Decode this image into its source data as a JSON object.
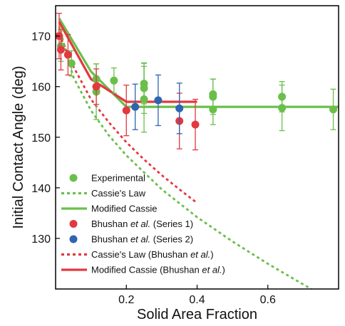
{
  "chart_data": {
    "type": "scatter",
    "xlabel": "Solid Area Fraction",
    "ylabel": "Initial Contact Angle (deg)",
    "xlim": [
      0,
      0.8
    ],
    "ylim": [
      120,
      176
    ],
    "x_ticks": [
      0.2,
      0.4,
      0.6
    ],
    "x_tick_labels": [
      "0.2",
      "0.4",
      "0.6"
    ],
    "y_ticks": [
      130,
      140,
      150,
      160,
      170
    ],
    "y_tick_labels": [
      "130",
      "140",
      "150",
      "160",
      "170"
    ],
    "grid": false,
    "legend_position": "bottom-left",
    "colors": {
      "green": "#6abf4b",
      "red": "#e2383f",
      "blue": "#2f64b0"
    },
    "series": [
      {
        "name": "Experimental",
        "kind": "points",
        "color": "#6abf4b",
        "points": [
          {
            "x": 0.015,
            "y": 168.0,
            "err": 3.0
          },
          {
            "x": 0.045,
            "y": 164.6,
            "err": 2.5
          },
          {
            "x": 0.115,
            "y": 159.0,
            "err": 5.5
          },
          {
            "x": 0.115,
            "y": 161.5,
            "err": 3.0
          },
          {
            "x": 0.165,
            "y": 161.2,
            "err": 2.5
          },
          {
            "x": 0.25,
            "y": 157.5,
            "err": 6.5
          },
          {
            "x": 0.25,
            "y": 159.7,
            "err": 5.0
          },
          {
            "x": 0.25,
            "y": 160.6,
            "err": 4.0
          },
          {
            "x": 0.445,
            "y": 155.5,
            "err": 3.0
          },
          {
            "x": 0.445,
            "y": 158.0,
            "err": 3.5
          },
          {
            "x": 0.445,
            "y": 158.5,
            "err": 3.0
          },
          {
            "x": 0.64,
            "y": 155.8,
            "err": 4.5
          },
          {
            "x": 0.64,
            "y": 158.0,
            "err": 3.0
          },
          {
            "x": 0.785,
            "y": 155.5,
            "err": 4.0
          }
        ]
      },
      {
        "name": "Cassie's Law",
        "kind": "dotted-line",
        "color": "#6abf4b",
        "x": [
          0.01,
          0.05,
          0.1,
          0.15,
          0.2,
          0.3,
          0.4,
          0.5,
          0.6,
          0.7,
          0.78
        ],
        "y": [
          171.9,
          161.9,
          155.3,
          150.4,
          146.4,
          139.7,
          134.2,
          129.4,
          125.0,
          120.9,
          117.7
        ]
      },
      {
        "name": "Modified Cassie",
        "kind": "line",
        "color": "#6abf4b",
        "x": [
          0.01,
          0.1,
          0.2,
          0.3,
          0.4,
          0.6,
          0.8
        ],
        "y": [
          173.5,
          163.0,
          156.0,
          156.0,
          156.0,
          156.0,
          156.0
        ]
      },
      {
        "name": "Bhushan et al. (Series 1)",
        "kind": "points",
        "color": "#e2383f",
        "points": [
          {
            "x": 0.01,
            "y": 170.0,
            "err": 4.5
          },
          {
            "x": 0.015,
            "y": 167.3,
            "err": 4.0
          },
          {
            "x": 0.035,
            "y": 166.3,
            "err": 4.0
          },
          {
            "x": 0.115,
            "y": 160.0,
            "err": 3.5
          },
          {
            "x": 0.2,
            "y": 155.3,
            "err": 5.0
          },
          {
            "x": 0.35,
            "y": 153.2,
            "err": 5.5
          },
          {
            "x": 0.395,
            "y": 152.5,
            "err": 5.0
          }
        ]
      },
      {
        "name": "Bhushan et al. (Series 2)",
        "kind": "points",
        "color": "#2f64b0",
        "points": [
          {
            "x": 0.225,
            "y": 156.0,
            "err": 4.5
          },
          {
            "x": 0.29,
            "y": 157.3,
            "err": 5.0
          },
          {
            "x": 0.35,
            "y": 155.7,
            "err": 5.0
          }
        ]
      },
      {
        "name": "Cassie's Law (Bhushan et al.)",
        "kind": "dotted-line",
        "color": "#e2383f",
        "x": [
          0.01,
          0.05,
          0.1,
          0.15,
          0.2,
          0.25,
          0.3,
          0.35,
          0.4
        ],
        "y": [
          170.4,
          164.0,
          157.5,
          153.0,
          149.0,
          145.6,
          142.5,
          139.7,
          137.0
        ]
      },
      {
        "name": "Modified Cassie (Bhushan et al.)",
        "kind": "line",
        "color": "#e2383f",
        "x": [
          0.01,
          0.1,
          0.2,
          0.3,
          0.4
        ],
        "y": [
          172.8,
          161.5,
          157.0,
          157.0,
          157.0
        ]
      }
    ],
    "legend": [
      {
        "marker": "dot",
        "color": "#6abf4b",
        "parts": [
          {
            "t": "Experimental",
            "i": false
          }
        ]
      },
      {
        "marker": "dotted",
        "color": "#6abf4b",
        "parts": [
          {
            "t": "Cassie's Law",
            "i": false
          }
        ]
      },
      {
        "marker": "solid",
        "color": "#6abf4b",
        "parts": [
          {
            "t": "Modified Cassie",
            "i": false
          }
        ]
      },
      {
        "marker": "dot",
        "color": "#e2383f",
        "parts": [
          {
            "t": "Bhushan ",
            "i": false
          },
          {
            "t": "et al.",
            "i": true
          },
          {
            "t": " (Series 1)",
            "i": false
          }
        ]
      },
      {
        "marker": "dot",
        "color": "#2f64b0",
        "parts": [
          {
            "t": "Bhushan ",
            "i": false
          },
          {
            "t": "et al.",
            "i": true
          },
          {
            "t": " (Series 2)",
            "i": false
          }
        ]
      },
      {
        "marker": "dotted",
        "color": "#e2383f",
        "parts": [
          {
            "t": "Cassie's Law (Bhushan ",
            "i": false
          },
          {
            "t": "et al.",
            "i": true
          },
          {
            "t": ")",
            "i": false
          }
        ]
      },
      {
        "marker": "solid",
        "color": "#e2383f",
        "parts": [
          {
            "t": "Modified Cassie (Bhushan ",
            "i": false
          },
          {
            "t": "et al.",
            "i": true
          },
          {
            "t": ")",
            "i": false
          }
        ]
      }
    ]
  }
}
